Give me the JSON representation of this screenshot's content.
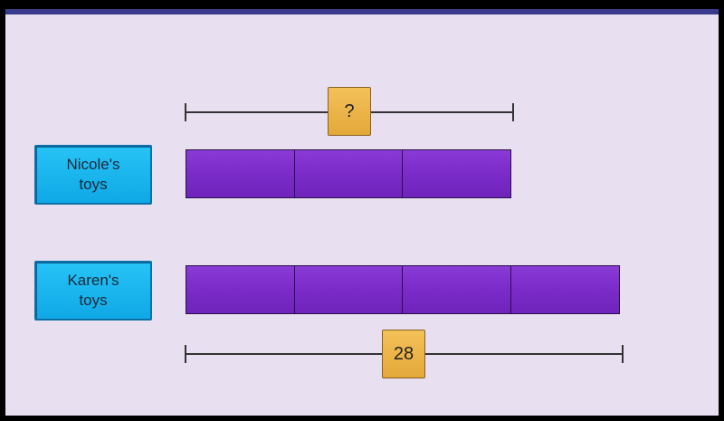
{
  "rows": [
    {
      "label": "Nicole's toys",
      "units": 3,
      "unit_color": "#7a2bc8"
    },
    {
      "label": "Karen's toys",
      "units": 4,
      "unit_color": "#7a2bc8"
    }
  ],
  "top_bracket": {
    "value_label": "?"
  },
  "bottom_bracket": {
    "value_label": "28"
  },
  "colors": {
    "label_box": "#0fa8e6",
    "value_box": "#e4a83a",
    "background": "#e8e0f0"
  }
}
